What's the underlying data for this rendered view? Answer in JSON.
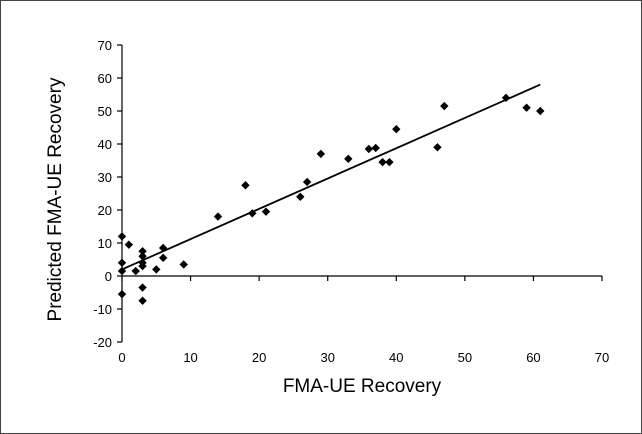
{
  "chart_data": {
    "type": "scatter",
    "title": "",
    "xlabel": "FMA-UE Recovery",
    "ylabel": "Predicted FMA-UE Recovery",
    "xlim": [
      0,
      70
    ],
    "ylim": [
      -20,
      70
    ],
    "xticks": [
      "0",
      "10",
      "20",
      "30",
      "40",
      "50",
      "60",
      "70"
    ],
    "yticks": [
      "-20",
      "-10",
      "0",
      "10",
      "20",
      "30",
      "40",
      "50",
      "60",
      "70"
    ],
    "grid": false,
    "legend": "none",
    "marker": "diamond",
    "marker_color": "#000000",
    "points": [
      [
        0,
        12
      ],
      [
        0,
        4
      ],
      [
        0,
        1.5
      ],
      [
        0,
        -5.5
      ],
      [
        1,
        9.5
      ],
      [
        2,
        1.5
      ],
      [
        3,
        7.5
      ],
      [
        3,
        6
      ],
      [
        3,
        4
      ],
      [
        3,
        3
      ],
      [
        3,
        -3.5
      ],
      [
        3,
        -7.5
      ],
      [
        5,
        2
      ],
      [
        6,
        8.5
      ],
      [
        6,
        5.5
      ],
      [
        9,
        3.5
      ],
      [
        14,
        18
      ],
      [
        18,
        27.5
      ],
      [
        19,
        19
      ],
      [
        21,
        19.5
      ],
      [
        26,
        24
      ],
      [
        27,
        28.5
      ],
      [
        29,
        37
      ],
      [
        33,
        35.5
      ],
      [
        36,
        38.5
      ],
      [
        37,
        38.8
      ],
      [
        38,
        34.5
      ],
      [
        39,
        34.5
      ],
      [
        40,
        44.5
      ],
      [
        46,
        39
      ],
      [
        47,
        51.5
      ],
      [
        56,
        54
      ],
      [
        59,
        51
      ],
      [
        61,
        50
      ]
    ],
    "trendline": {
      "type": "linear",
      "x": [
        0,
        61
      ],
      "y": [
        2,
        58
      ]
    }
  }
}
